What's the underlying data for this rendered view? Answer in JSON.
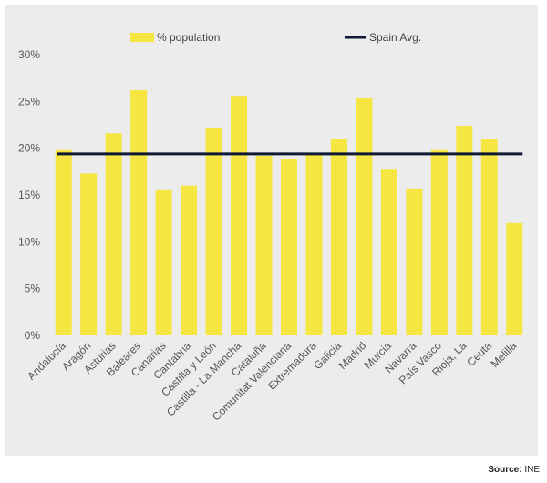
{
  "chart_data": {
    "type": "bar",
    "categories": [
      "Andalucía",
      "Aragón",
      "Asturias",
      "Baleares",
      "Canarias",
      "Cantabria",
      "Castilla y León",
      "Castilla - La Mancha",
      "Cataluña",
      "Comunitat Valenciana",
      "Extremadura",
      "Galicia",
      "Madrid",
      "Murcia",
      "Navarra",
      "País Vasco",
      "Rioja, La",
      "Ceuta",
      "Melilla"
    ],
    "series": [
      {
        "name": "% population",
        "type": "bar",
        "color": "#f5e642",
        "values": [
          19.8,
          17.3,
          21.6,
          26.2,
          15.6,
          16.0,
          22.2,
          25.6,
          19.2,
          18.8,
          19.3,
          21.0,
          25.4,
          17.8,
          15.7,
          19.8,
          22.4,
          21.0,
          12.0
        ]
      },
      {
        "name": "Spain Avg.",
        "type": "line",
        "color": "#0e1a33",
        "value": 19.4
      }
    ],
    "ylim": [
      0,
      30
    ],
    "yticks": [
      0,
      5,
      10,
      15,
      20,
      25,
      30
    ],
    "ytick_labels": [
      "0%",
      "5%",
      "10%",
      "15%",
      "20%",
      "25%",
      "30%"
    ],
    "grid": false,
    "legend": "top"
  },
  "source": {
    "label": "Source:",
    "value": "INE"
  }
}
